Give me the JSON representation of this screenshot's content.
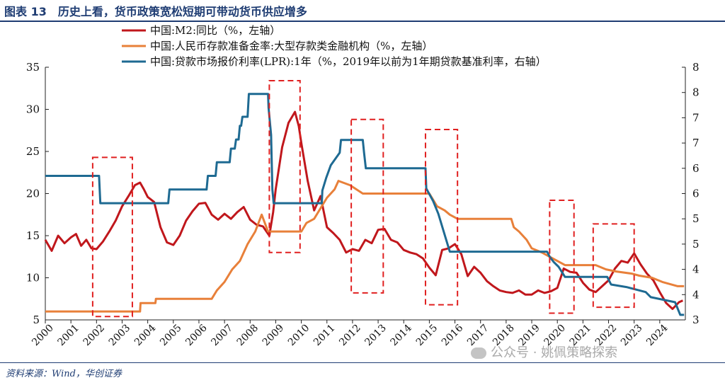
{
  "title": "图表 13　历史上看，货币政策宽松短期可带动货币供应增多",
  "source": "资料来源：Wind，华创证券",
  "watermark": "公众号 · 姚佩策略探索",
  "chart_data": {
    "type": "line",
    "x_tick_labels": [
      "2000",
      "2001",
      "2002",
      "2003",
      "2004",
      "2005",
      "2006",
      "2007",
      "2008",
      "2009",
      "2010",
      "2011",
      "2012",
      "2013",
      "2014",
      "2015",
      "2016",
      "2017",
      "2018",
      "2019",
      "2020",
      "2021",
      "2022",
      "2023",
      "2024"
    ],
    "x_range": [
      2000,
      2025
    ],
    "y_left": {
      "ticks": [
        "5",
        "10",
        "15",
        "20",
        "25",
        "30",
        "35"
      ],
      "range": [
        5,
        35
      ]
    },
    "y_right": {
      "ticks": [
        "3",
        "4",
        "4",
        "5",
        "5",
        "6",
        "6",
        "7",
        "7",
        "8",
        "8"
      ],
      "range": [
        3,
        8
      ]
    },
    "grid": false,
    "legend_position": "top-left",
    "series": [
      {
        "name": "中国:M2:同比（%，左轴）",
        "axis": "left",
        "color": "#c0171c",
        "points": [
          [
            2000.0,
            14.5
          ],
          [
            2000.25,
            13.2
          ],
          [
            2000.5,
            15.0
          ],
          [
            2000.75,
            14.1
          ],
          [
            2001.0,
            14.8
          ],
          [
            2001.2,
            15.2
          ],
          [
            2001.4,
            13.8
          ],
          [
            2001.6,
            14.5
          ],
          [
            2001.8,
            13.5
          ],
          [
            2002.0,
            13.4
          ],
          [
            2002.25,
            14.3
          ],
          [
            2002.5,
            15.5
          ],
          [
            2002.75,
            16.8
          ],
          [
            2003.0,
            18.5
          ],
          [
            2003.25,
            19.7
          ],
          [
            2003.5,
            21.0
          ],
          [
            2003.7,
            21.3
          ],
          [
            2003.85,
            20.5
          ],
          [
            2004.0,
            19.6
          ],
          [
            2004.25,
            19.0
          ],
          [
            2004.5,
            16.0
          ],
          [
            2004.75,
            14.2
          ],
          [
            2005.0,
            13.9
          ],
          [
            2005.25,
            15.0
          ],
          [
            2005.5,
            16.8
          ],
          [
            2005.75,
            17.9
          ],
          [
            2006.0,
            18.8
          ],
          [
            2006.25,
            18.9
          ],
          [
            2006.5,
            17.5
          ],
          [
            2006.75,
            16.9
          ],
          [
            2007.0,
            17.6
          ],
          [
            2007.25,
            17.0
          ],
          [
            2007.5,
            17.8
          ],
          [
            2007.75,
            18.4
          ],
          [
            2008.0,
            16.9
          ],
          [
            2008.25,
            16.3
          ],
          [
            2008.5,
            16.1
          ],
          [
            2008.75,
            15.0
          ],
          [
            2008.9,
            17.8
          ],
          [
            2009.0,
            20.5
          ],
          [
            2009.25,
            25.5
          ],
          [
            2009.5,
            28.4
          ],
          [
            2009.75,
            29.7
          ],
          [
            2009.9,
            28.0
          ],
          [
            2010.0,
            26.0
          ],
          [
            2010.25,
            21.5
          ],
          [
            2010.5,
            18.0
          ],
          [
            2010.75,
            19.7
          ],
          [
            2011.0,
            16.0
          ],
          [
            2011.25,
            15.3
          ],
          [
            2011.5,
            14.5
          ],
          [
            2011.75,
            13.0
          ],
          [
            2012.0,
            13.4
          ],
          [
            2012.25,
            13.2
          ],
          [
            2012.5,
            14.5
          ],
          [
            2012.75,
            14.1
          ],
          [
            2013.0,
            15.7
          ],
          [
            2013.25,
            15.8
          ],
          [
            2013.5,
            14.5
          ],
          [
            2013.75,
            14.2
          ],
          [
            2014.0,
            13.3
          ],
          [
            2014.25,
            13.0
          ],
          [
            2014.5,
            12.8
          ],
          [
            2014.75,
            12.3
          ],
          [
            2015.0,
            11.2
          ],
          [
            2015.25,
            10.3
          ],
          [
            2015.5,
            13.3
          ],
          [
            2015.75,
            13.5
          ],
          [
            2016.0,
            14.0
          ],
          [
            2016.25,
            12.8
          ],
          [
            2016.5,
            10.2
          ],
          [
            2016.75,
            11.3
          ],
          [
            2017.0,
            10.6
          ],
          [
            2017.25,
            9.6
          ],
          [
            2017.5,
            9.0
          ],
          [
            2017.75,
            8.5
          ],
          [
            2018.0,
            8.3
          ],
          [
            2018.25,
            8.2
          ],
          [
            2018.5,
            8.5
          ],
          [
            2018.75,
            8.0
          ],
          [
            2019.0,
            8.0
          ],
          [
            2019.25,
            8.5
          ],
          [
            2019.5,
            8.2
          ],
          [
            2019.75,
            8.4
          ],
          [
            2020.0,
            8.8
          ],
          [
            2020.25,
            11.1
          ],
          [
            2020.5,
            10.7
          ],
          [
            2020.75,
            10.6
          ],
          [
            2021.0,
            9.4
          ],
          [
            2021.25,
            8.6
          ],
          [
            2021.5,
            8.3
          ],
          [
            2021.75,
            9.0
          ],
          [
            2022.0,
            9.7
          ],
          [
            2022.25,
            11.1
          ],
          [
            2022.5,
            12.0
          ],
          [
            2022.75,
            11.8
          ],
          [
            2023.0,
            12.9
          ],
          [
            2023.25,
            11.6
          ],
          [
            2023.5,
            10.5
          ],
          [
            2023.75,
            9.7
          ],
          [
            2024.0,
            8.3
          ],
          [
            2024.25,
            7.0
          ],
          [
            2024.5,
            6.3
          ],
          [
            2024.75,
            7.1
          ],
          [
            2024.9,
            7.3
          ]
        ]
      },
      {
        "name": "中国:人民币存款准备金率:大型存款类金融机构（%，左轴）",
        "axis": "left",
        "color": "#e8803a",
        "points": [
          [
            2000.0,
            6.0
          ],
          [
            2003.7,
            6.0
          ],
          [
            2003.72,
            7.0
          ],
          [
            2004.3,
            7.0
          ],
          [
            2004.32,
            7.5
          ],
          [
            2006.5,
            7.5
          ],
          [
            2006.7,
            8.5
          ],
          [
            2007.0,
            9.5
          ],
          [
            2007.3,
            11.0
          ],
          [
            2007.6,
            12.0
          ],
          [
            2007.9,
            14.0
          ],
          [
            2008.2,
            15.5
          ],
          [
            2008.45,
            17.5
          ],
          [
            2008.7,
            15.5
          ],
          [
            2008.9,
            15.5
          ],
          [
            2009.0,
            15.5
          ],
          [
            2010.0,
            15.5
          ],
          [
            2010.2,
            16.5
          ],
          [
            2010.5,
            17.0
          ],
          [
            2010.8,
            18.5
          ],
          [
            2011.0,
            19.5
          ],
          [
            2011.3,
            20.5
          ],
          [
            2011.45,
            21.5
          ],
          [
            2011.9,
            21.0
          ],
          [
            2012.15,
            20.5
          ],
          [
            2012.4,
            20.0
          ],
          [
            2015.0,
            20.0
          ],
          [
            2015.1,
            19.5
          ],
          [
            2015.3,
            18.5
          ],
          [
            2015.6,
            18.0
          ],
          [
            2015.8,
            17.5
          ],
          [
            2016.1,
            17.0
          ],
          [
            2018.2,
            17.0
          ],
          [
            2018.3,
            16.0
          ],
          [
            2018.5,
            15.5
          ],
          [
            2018.8,
            14.5
          ],
          [
            2019.0,
            13.5
          ],
          [
            2019.4,
            13.0
          ],
          [
            2019.7,
            12.5
          ],
          [
            2020.0,
            12.0
          ],
          [
            2020.3,
            11.5
          ],
          [
            2021.5,
            11.5
          ],
          [
            2021.9,
            11.0
          ],
          [
            2022.3,
            10.75
          ],
          [
            2022.9,
            10.5
          ],
          [
            2023.2,
            10.25
          ],
          [
            2023.7,
            10.0
          ],
          [
            2024.1,
            9.5
          ],
          [
            2024.7,
            9.0
          ],
          [
            2024.95,
            9.0
          ]
        ]
      },
      {
        "name": "中国:贷款市场报价利率(LPR):1年（%，2019年以前为1年期贷款基准利率，右轴）",
        "axis": "right",
        "color": "#1e6a92",
        "points": [
          [
            2000.0,
            5.85
          ],
          [
            2002.1,
            5.85
          ],
          [
            2002.15,
            5.31
          ],
          [
            2004.8,
            5.31
          ],
          [
            2004.85,
            5.58
          ],
          [
            2006.3,
            5.58
          ],
          [
            2006.35,
            5.85
          ],
          [
            2006.65,
            5.85
          ],
          [
            2006.7,
            6.12
          ],
          [
            2007.2,
            6.12
          ],
          [
            2007.25,
            6.39
          ],
          [
            2007.4,
            6.39
          ],
          [
            2007.45,
            6.57
          ],
          [
            2007.55,
            6.57
          ],
          [
            2007.6,
            6.84
          ],
          [
            2007.65,
            6.84
          ],
          [
            2007.7,
            7.02
          ],
          [
            2007.9,
            7.02
          ],
          [
            2007.95,
            7.47
          ],
          [
            2008.0,
            7.47
          ],
          [
            2008.7,
            7.47
          ],
          [
            2008.72,
            7.2
          ],
          [
            2008.77,
            6.93
          ],
          [
            2008.82,
            6.66
          ],
          [
            2008.87,
            5.58
          ],
          [
            2008.92,
            5.31
          ],
          [
            2010.8,
            5.31
          ],
          [
            2010.82,
            5.56
          ],
          [
            2010.97,
            5.81
          ],
          [
            2011.15,
            6.06
          ],
          [
            2011.5,
            6.31
          ],
          [
            2011.55,
            6.56
          ],
          [
            2012.4,
            6.56
          ],
          [
            2012.45,
            6.31
          ],
          [
            2012.52,
            6.0
          ],
          [
            2014.85,
            6.0
          ],
          [
            2014.88,
            5.6
          ],
          [
            2015.15,
            5.35
          ],
          [
            2015.35,
            5.1
          ],
          [
            2015.5,
            4.85
          ],
          [
            2015.65,
            4.6
          ],
          [
            2015.8,
            4.35
          ],
          [
            2016.0,
            4.35
          ],
          [
            2019.6,
            4.35
          ],
          [
            2019.7,
            4.25
          ],
          [
            2019.85,
            4.15
          ],
          [
            2020.05,
            4.05
          ],
          [
            2020.3,
            3.85
          ],
          [
            2021.95,
            3.85
          ],
          [
            2022.0,
            3.8
          ],
          [
            2022.1,
            3.7
          ],
          [
            2022.7,
            3.65
          ],
          [
            2023.45,
            3.55
          ],
          [
            2023.65,
            3.45
          ],
          [
            2024.6,
            3.35
          ],
          [
            2024.8,
            3.1
          ],
          [
            2024.95,
            3.1
          ]
        ]
      }
    ],
    "highlight_boxes": [
      {
        "x0": 2001.85,
        "x1": 2003.4,
        "y0_left": 5.4,
        "y1_left": 24.3
      },
      {
        "x0": 2008.75,
        "x1": 2009.95,
        "y0_left": 13.0,
        "y1_left": 33.4
      },
      {
        "x0": 2011.95,
        "x1": 2013.2,
        "y0_left": 8.2,
        "y1_left": 28.8
      },
      {
        "x0": 2014.85,
        "x1": 2016.1,
        "y0_left": 6.8,
        "y1_left": 27.6
      },
      {
        "x0": 2019.7,
        "x1": 2020.65,
        "y0_left": 5.8,
        "y1_left": 19.2
      },
      {
        "x0": 2021.4,
        "x1": 2023.0,
        "y0_left": 6.5,
        "y1_left": 16.4
      }
    ]
  }
}
